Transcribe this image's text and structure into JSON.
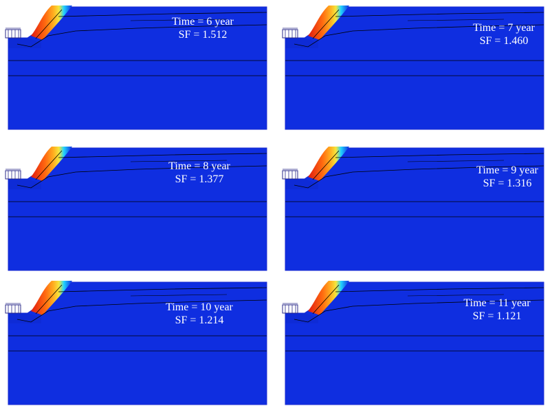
{
  "panels": [
    {
      "time": "Time = 6 year",
      "sf": "SF = 1.512"
    },
    {
      "time": "Time = 7 year",
      "sf": "SF = 1.460"
    },
    {
      "time": "Time = 8 year",
      "sf": "SF = 1.377"
    },
    {
      "time": "Time = 9 year",
      "sf": "SF = 1.316"
    },
    {
      "time": "Time = 10 year",
      "sf": "SF = 1.214"
    },
    {
      "time": "Time = 11 year",
      "sf": "SF = 1.121"
    }
  ],
  "colors": {
    "background": "#0f2ee0",
    "background_dark": "#0a23c8",
    "edge": "#1a2ad0",
    "contour": [
      "#0f2ee0",
      "#21d3ff",
      "#f5e63c",
      "#ff7a10",
      "#e01a10"
    ],
    "line": "#000000",
    "label": "#ffffff"
  },
  "icons": {
    "load": "vehicle-load-icon"
  }
}
